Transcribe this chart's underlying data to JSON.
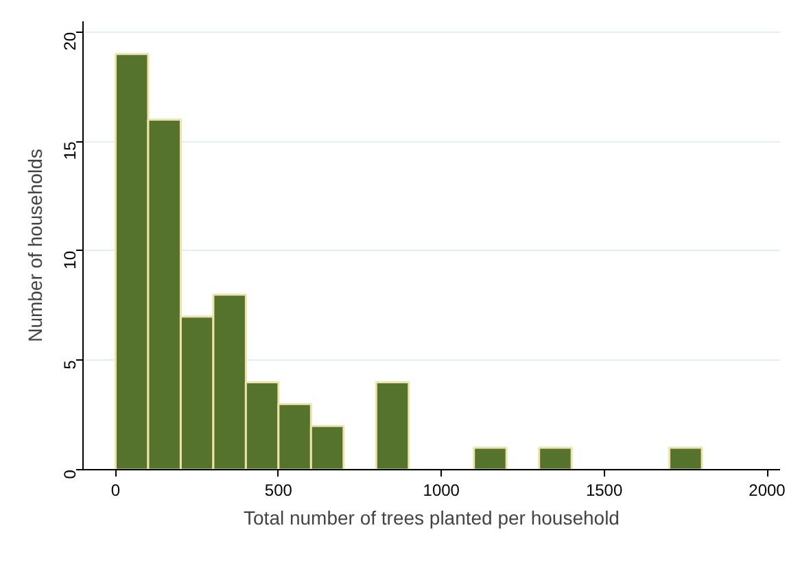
{
  "chart_data": {
    "type": "histogram",
    "xlabel": "Total number of trees planted per household",
    "ylabel": "Number of households",
    "bins": [
      0,
      100,
      200,
      300,
      400,
      500,
      600,
      700,
      800,
      900,
      1000,
      1100,
      1200,
      1300,
      1400,
      1500,
      1600,
      1700,
      1800
    ],
    "values": [
      19,
      16,
      7,
      8,
      4,
      3,
      2,
      0,
      4,
      0,
      0,
      1,
      0,
      1,
      0,
      0,
      0,
      1
    ],
    "color": "#55732d",
    "xlim": [
      -100,
      2040
    ],
    "ylim": [
      0,
      20.5
    ],
    "xticks": [
      0,
      500,
      1000,
      1500,
      2000
    ],
    "yticks": [
      0,
      5,
      10,
      15,
      20
    ],
    "grid": "y"
  }
}
